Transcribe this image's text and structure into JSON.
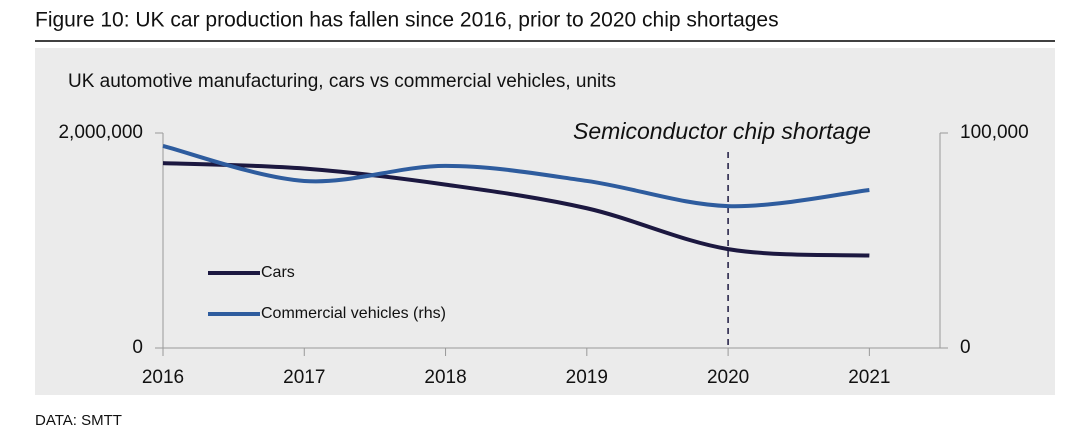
{
  "chart_data": {
    "type": "line",
    "figure_title": "Figure 10: UK car production has fallen since 2016, prior to 2020 chip shortages",
    "title": "UK automotive manufacturing, cars vs commercial vehicles, units",
    "source": "DATA: SMTT",
    "x": [
      2016,
      2017,
      2018,
      2019,
      2020,
      2021
    ],
    "xlim": [
      2016,
      2021.5
    ],
    "xticks": [
      2016,
      2017,
      2018,
      2019,
      2020,
      2021
    ],
    "ylim": [
      0,
      2000000
    ],
    "yticks": [
      0,
      {
        "value": 2000000,
        "label": "2,000,000"
      }
    ],
    "y2lim": [
      0,
      100000
    ],
    "y2ticks": [
      0,
      {
        "value": 100000,
        "label": "100,000"
      }
    ],
    "series": [
      {
        "name": "Cars",
        "color": "#1c1840",
        "values": [
          1720000,
          1670000,
          1520000,
          1300000,
          920000,
          860000
        ]
      },
      {
        "name": "Commercial vehicles (rhs)",
        "color": "#2e5c9e",
        "axis": "y2",
        "values": [
          94000,
          77700,
          84700,
          77700,
          66000,
          73500
        ]
      }
    ],
    "annotation": {
      "text": "Semiconductor chip shortage",
      "x": 2020
    },
    "legend": "left",
    "smooth": true
  }
}
